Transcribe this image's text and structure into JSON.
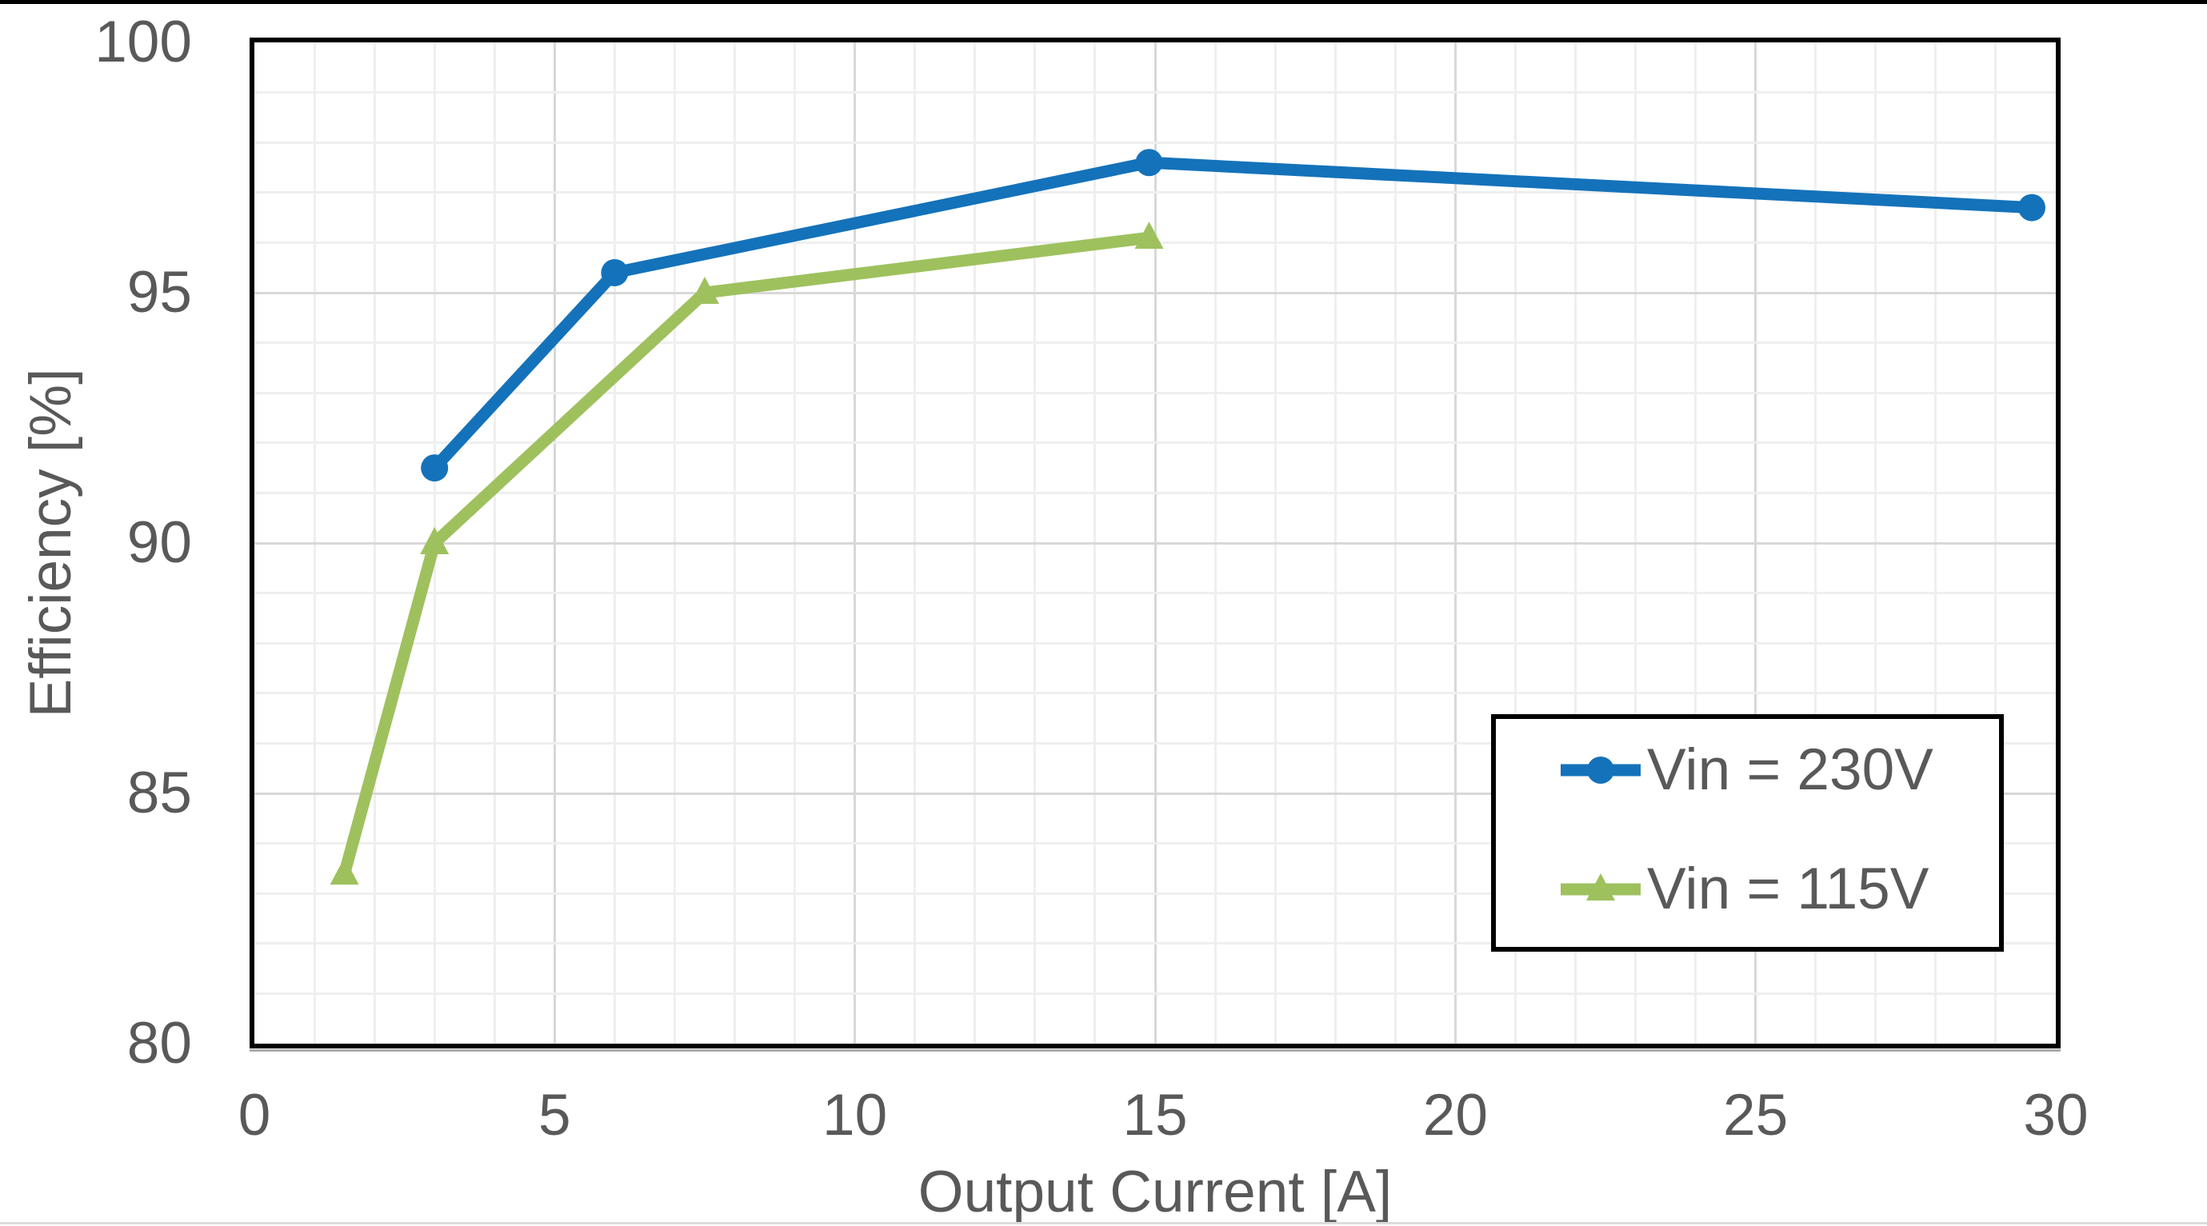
{
  "chart_data": {
    "type": "line",
    "title": "",
    "xlabel": "Output Current [A]",
    "ylabel": "Efficiency [%]",
    "xlim": [
      0,
      30
    ],
    "ylim": [
      80,
      100
    ],
    "x_major_ticks": [
      0,
      5,
      10,
      15,
      20,
      25,
      30
    ],
    "y_major_ticks": [
      80,
      85,
      90,
      95,
      100
    ],
    "x_minor_step": 1,
    "y_minor_step": 1,
    "grid": "major+minor",
    "legend_position": "inside-bottom-right",
    "series": [
      {
        "name": "Vin = 230V",
        "marker": "circle",
        "color": "#1472BA",
        "x": [
          3,
          6,
          14.9,
          29.6
        ],
        "y": [
          91.5,
          95.4,
          97.6,
          96.7
        ]
      },
      {
        "name": "Vin = 115V",
        "marker": "triangle",
        "color": "#9EC15E",
        "x": [
          1.5,
          3,
          7.5,
          14.9
        ],
        "y": [
          83.4,
          90.0,
          95.0,
          96.1
        ]
      }
    ],
    "styles": {
      "text_color": "#595959",
      "minor_grid_color": "#EFEFEF",
      "major_grid_color": "#D8D8D8",
      "axis_border_color": "#000000",
      "background_color": "#FFFFFF"
    }
  }
}
